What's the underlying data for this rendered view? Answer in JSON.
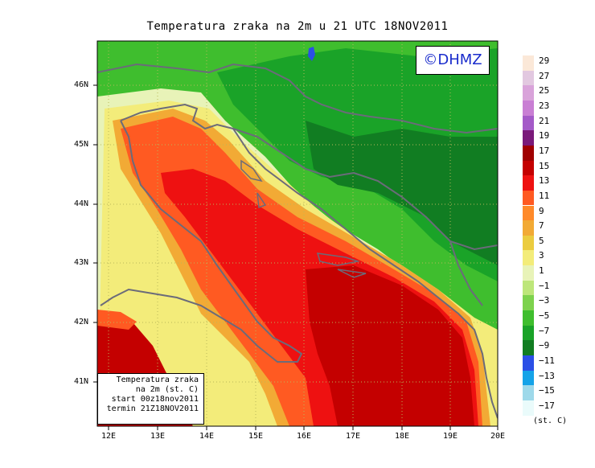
{
  "title": "Temperatura zraka na 2m u 21 UTC 18NOV2011",
  "copyright": "©DHMZ",
  "infobox": {
    "line1": "Temperatura zraka",
    "line2": "na 2m (st. C)",
    "line3": "start 00z18nov2011",
    "line4": "termin 21Z18NOV2011"
  },
  "legend": {
    "unit": "(st. C)",
    "labels": [
      "29",
      "27",
      "25",
      "23",
      "21",
      "19",
      "17",
      "15",
      "13",
      "11",
      "9",
      "7",
      "5",
      "3",
      "1",
      "−1",
      "−3",
      "−5",
      "−7",
      "−9",
      "−11",
      "−13",
      "−15",
      "−17"
    ],
    "colors": [
      "#fbe8d8",
      "#e2c8e0",
      "#d9a3da",
      "#c97fd4",
      "#a45ac8",
      "#7a1a7a",
      "#a00000",
      "#c40000",
      "#ee1111",
      "#ff5a22",
      "#ff8a2a",
      "#f2aa35",
      "#ebcc3f",
      "#f3ec7a",
      "#e8f3b8",
      "#bde67a",
      "#7dd24d",
      "#3fbe2e",
      "#1aa328",
      "#117d22",
      "#2b4fe6",
      "#15a3e8",
      "#9ed9ea",
      "#eafbfb"
    ]
  },
  "axes": {
    "lat_labels": [
      "46N",
      "45N",
      "44N",
      "43N",
      "42N",
      "41N"
    ],
    "lon_labels": [
      "12E",
      "13E",
      "14E",
      "15E",
      "16E",
      "17E",
      "18E",
      "19E",
      "20E"
    ]
  }
}
